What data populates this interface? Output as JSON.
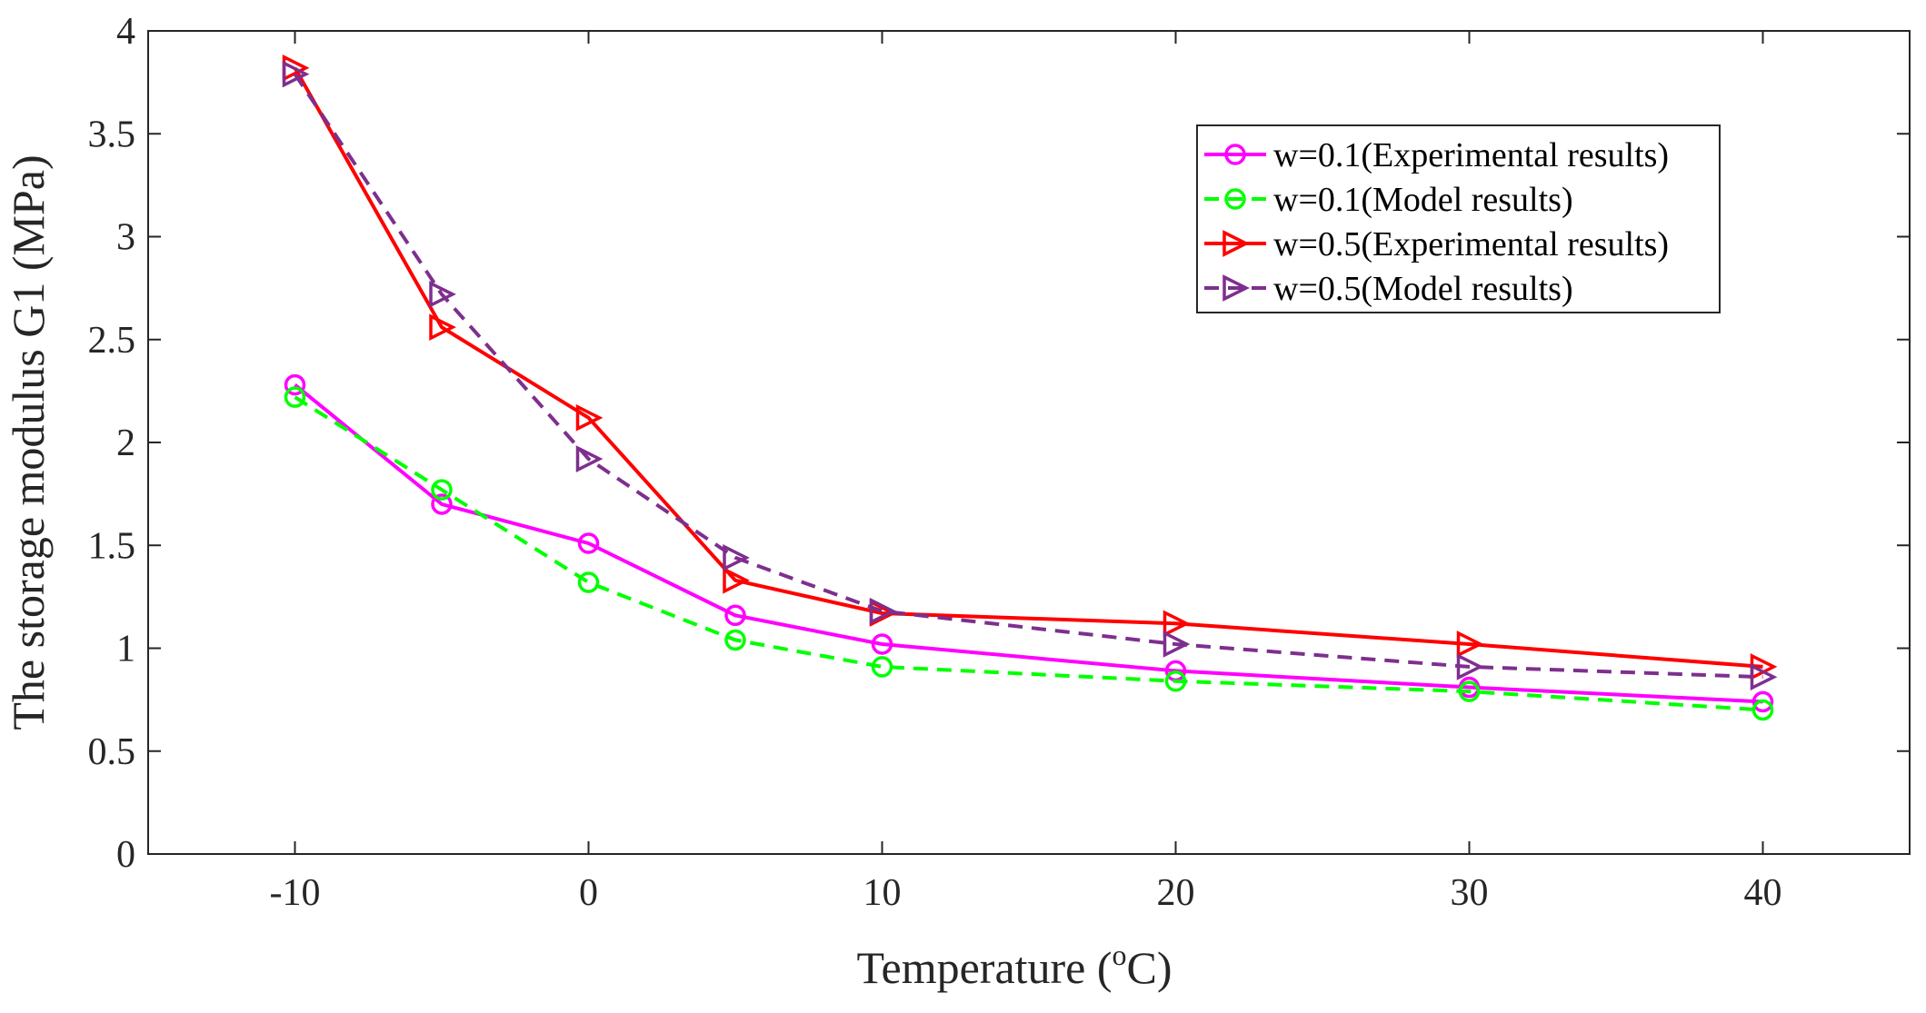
{
  "chart_data": {
    "type": "line",
    "title": "",
    "xlabel": "Temperature",
    "xlabel_unit_sup": "o",
    "xlabel_unit_rest": "C)",
    "ylabel": "The storage modulus G1 (MPa)",
    "categories": [
      "-10",
      "-5",
      "0",
      "5",
      "10",
      "20",
      "30",
      "40"
    ],
    "x_tick_labels": [
      "-10",
      "0",
      "10",
      "20",
      "30",
      "40"
    ],
    "y_tick_labels": [
      "0",
      "0.5",
      "1",
      "1.5",
      "2",
      "2.5",
      "3",
      "3.5",
      "4"
    ],
    "ylim": [
      0,
      4
    ],
    "grid": false,
    "legend_position": "top-right",
    "series": [
      {
        "name": "w=0.1(Experimental results)",
        "color": "#ff00ff",
        "style": "solid",
        "marker": "circle",
        "values": [
          2.28,
          1.7,
          1.51,
          1.16,
          1.02,
          0.89,
          0.81,
          0.74
        ]
      },
      {
        "name": "w=0.1(Model results)",
        "color": "#00ff00",
        "style": "dashed",
        "marker": "circle",
        "values": [
          2.22,
          1.77,
          1.32,
          1.04,
          0.91,
          0.84,
          0.79,
          0.7
        ]
      },
      {
        "name": "w=0.5(Experimental results)",
        "color": "#ff0000",
        "style": "solid",
        "marker": "triangle-right",
        "values": [
          3.82,
          2.56,
          2.12,
          1.33,
          1.17,
          1.12,
          1.02,
          0.91
        ]
      },
      {
        "name": "w=0.5(Model results)",
        "color": "#7e2f8e",
        "style": "dashed",
        "marker": "triangle-right",
        "values": [
          3.79,
          2.72,
          1.92,
          1.44,
          1.18,
          1.02,
          0.91,
          0.86
        ]
      }
    ]
  }
}
